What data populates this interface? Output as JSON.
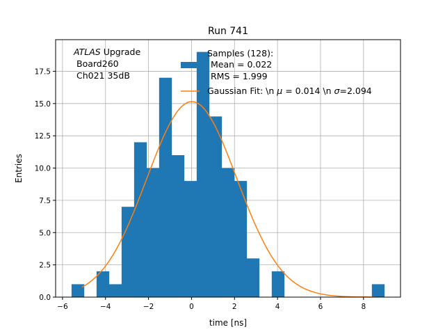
{
  "chart_data": {
    "type": "bar",
    "title": "Run 741",
    "xlabel": "time [ns]",
    "ylabel": "Entries",
    "xlim": [
      -6.32,
      9.72
    ],
    "ylim": [
      0,
      19.95
    ],
    "grid": true,
    "legend_placement": "top-right",
    "xticks": [
      -6,
      -4,
      -2,
      0,
      2,
      4,
      6,
      8
    ],
    "xtick_labels": [
      "−6",
      "−4",
      "−2",
      "0",
      "2",
      "4",
      "6",
      "8"
    ],
    "yticks": [
      0,
      2.5,
      5,
      7.5,
      10,
      12.5,
      15,
      17.5
    ],
    "ytick_labels": [
      "0.0",
      "2.5",
      "5.0",
      "7.5",
      "10.0",
      "12.5",
      "15.0",
      "17.5"
    ],
    "histogram": {
      "bin_start": -5.58,
      "bin_end": 8.97,
      "n_bins": 25,
      "counts": [
        1,
        0,
        2,
        1,
        7,
        12,
        10,
        17,
        11,
        9,
        19,
        14,
        10,
        9,
        3,
        0,
        2,
        0,
        0,
        0,
        0,
        0,
        0,
        0,
        1
      ],
      "color": "#1f77b4"
    },
    "fit": {
      "mu": 0.014,
      "sigma": 2.094,
      "amplitude": 15.15,
      "x_range": [
        -5.1,
        8.5
      ],
      "color": "#ff7f0e"
    },
    "annotation": {
      "italic": "ATLAS",
      "rest": " Upgrade",
      "line2": "Board260",
      "line3": "Ch021 35dB"
    },
    "legend": [
      {
        "lines": [
          "Samples (128):",
          "Mean = 0.022",
          "RMS = 1.999"
        ]
      },
      {
        "prefix": "Gaussian Fit: \\n ",
        "mu_sym": "μ",
        "mid": " = 0.014 \\n ",
        "sigma_sym": "σ",
        "end": "=2.094"
      }
    ]
  }
}
